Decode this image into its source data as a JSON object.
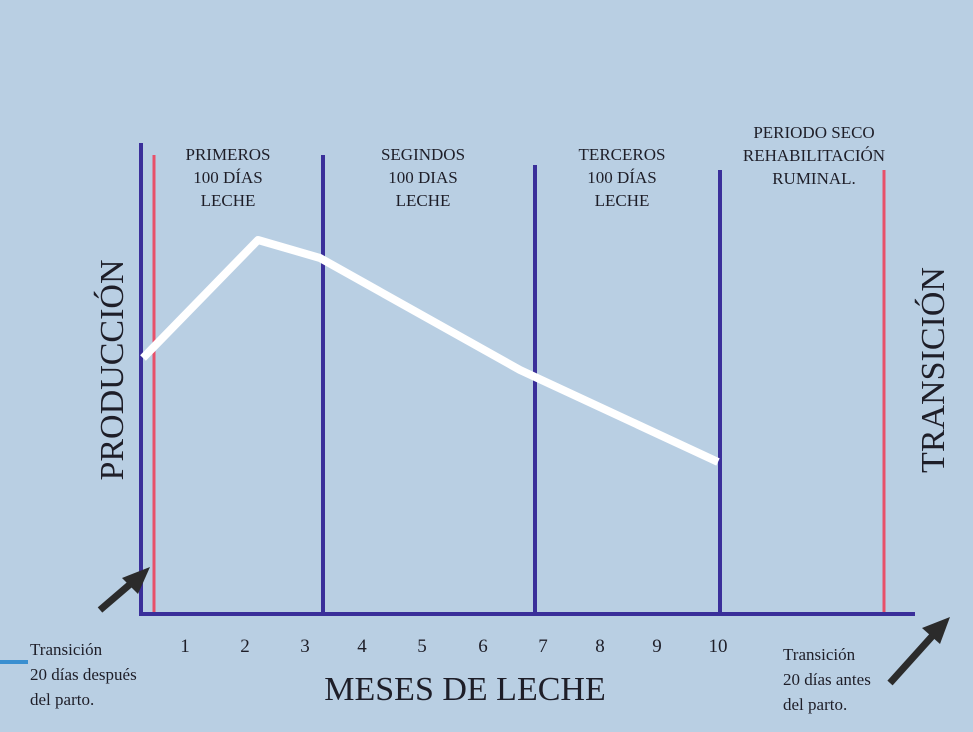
{
  "title": "MESES DE LECHE",
  "y_label": "PRODUCCIÓN",
  "right_label": "TRANSICIÓN",
  "periods": [
    {
      "lines": [
        "PRIMEROS",
        "100 DÍAS",
        "LECHE"
      ]
    },
    {
      "lines": [
        "SEGINDOS",
        "100 DIAS",
        "LECHE"
      ]
    },
    {
      "lines": [
        "TERCEROS",
        "100 DÍAS",
        "LECHE"
      ]
    },
    {
      "lines": [
        "PERIODO SECO",
        "REHABILITACIÓN",
        "RUMINAL."
      ]
    }
  ],
  "months": [
    "1",
    "2",
    "3",
    "4",
    "5",
    "6",
    "7",
    "8",
    "9",
    "10"
  ],
  "left_note": [
    "Transición",
    "20 días después",
    "del parto."
  ],
  "right_note": [
    "Transición",
    "20 días antes",
    "del parto."
  ]
}
